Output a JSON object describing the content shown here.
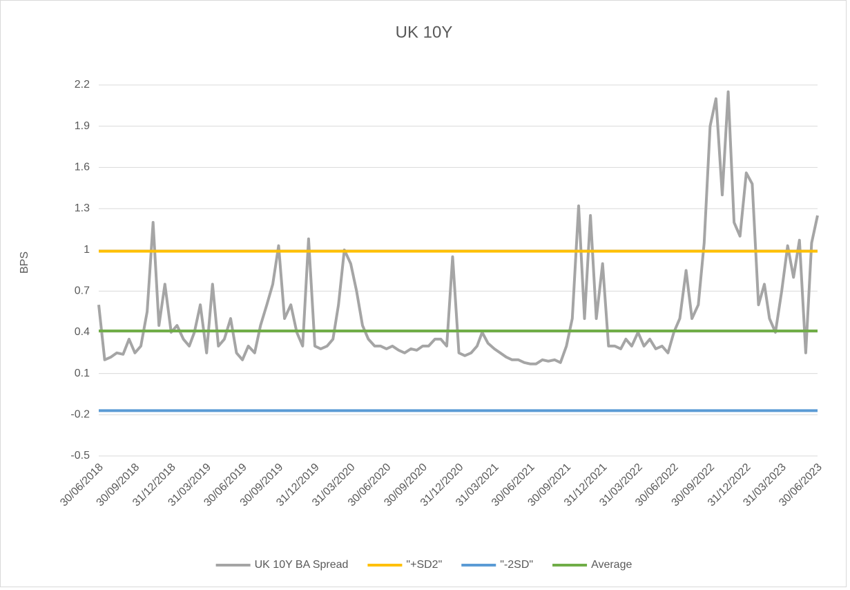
{
  "chart_data": {
    "type": "line",
    "title": "UK 10Y",
    "y_label": "BPS",
    "x": [
      "30/06/2018",
      "15/07/2018",
      "31/07/2018",
      "15/08/2018",
      "31/08/2018",
      "15/09/2018",
      "30/09/2018",
      "15/10/2018",
      "31/10/2018",
      "15/11/2018",
      "30/11/2018",
      "15/12/2018",
      "31/12/2018",
      "15/01/2019",
      "31/01/2019",
      "15/02/2019",
      "28/02/2019",
      "15/03/2019",
      "31/03/2019",
      "15/04/2019",
      "30/04/2019",
      "15/05/2019",
      "31/05/2019",
      "15/06/2019",
      "30/06/2019",
      "15/07/2019",
      "31/07/2019",
      "15/08/2019",
      "31/08/2019",
      "15/09/2019",
      "30/09/2019",
      "15/10/2019",
      "31/10/2019",
      "15/11/2019",
      "30/11/2019",
      "15/12/2019",
      "31/12/2019",
      "15/01/2020",
      "31/01/2020",
      "15/02/2020",
      "29/02/2020",
      "15/03/2020",
      "31/03/2020",
      "15/04/2020",
      "30/04/2020",
      "15/05/2020",
      "31/05/2020",
      "15/06/2020",
      "30/06/2020",
      "15/07/2020",
      "31/07/2020",
      "15/08/2020",
      "31/08/2020",
      "15/09/2020",
      "30/09/2020",
      "15/10/2020",
      "31/10/2020",
      "15/11/2020",
      "30/11/2020",
      "15/12/2020",
      "31/12/2020",
      "15/01/2021",
      "31/01/2021",
      "15/02/2021",
      "28/02/2021",
      "15/03/2021",
      "31/03/2021",
      "15/04/2021",
      "30/04/2021",
      "15/05/2021",
      "31/05/2021",
      "15/06/2021",
      "30/06/2021",
      "15/07/2021",
      "31/07/2021",
      "15/08/2021",
      "31/08/2021",
      "15/09/2021",
      "30/09/2021",
      "15/10/2021",
      "31/10/2021",
      "15/11/2021",
      "30/11/2021",
      "15/12/2021",
      "31/12/2021",
      "15/01/2022",
      "31/01/2022",
      "15/02/2022",
      "28/02/2022",
      "15/03/2022",
      "31/03/2022",
      "15/04/2022",
      "30/04/2022",
      "15/05/2022",
      "31/05/2022",
      "15/06/2022",
      "30/06/2022",
      "15/07/2022",
      "31/07/2022",
      "15/08/2022",
      "31/08/2022",
      "15/09/2022",
      "30/09/2022",
      "15/10/2022",
      "31/10/2022",
      "15/11/2022",
      "30/11/2022",
      "15/12/2022",
      "31/12/2022",
      "15/01/2023",
      "31/01/2023",
      "15/02/2023",
      "28/02/2023",
      "15/03/2023",
      "31/03/2023",
      "15/04/2023",
      "30/04/2023",
      "15/05/2023",
      "31/05/2023",
      "15/06/2023",
      "30/06/2023"
    ],
    "series": [
      {
        "name": "UK 10Y BA Spread",
        "color": "#a5a5a5",
        "values": [
          0.6,
          0.2,
          0.22,
          0.25,
          0.24,
          0.35,
          0.25,
          0.3,
          0.55,
          1.2,
          0.45,
          0.75,
          0.4,
          0.45,
          0.35,
          0.3,
          0.4,
          0.6,
          0.25,
          0.75,
          0.3,
          0.35,
          0.5,
          0.25,
          0.2,
          0.3,
          0.25,
          0.45,
          0.6,
          0.75,
          1.03,
          0.5,
          0.6,
          0.4,
          0.3,
          1.08,
          0.3,
          0.28,
          0.3,
          0.35,
          0.6,
          1.0,
          0.9,
          0.7,
          0.45,
          0.35,
          0.3,
          0.3,
          0.28,
          0.3,
          0.27,
          0.25,
          0.28,
          0.27,
          0.3,
          0.3,
          0.35,
          0.35,
          0.3,
          0.95,
          0.25,
          0.23,
          0.25,
          0.3,
          0.4,
          0.32,
          0.28,
          0.25,
          0.22,
          0.2,
          0.2,
          0.18,
          0.17,
          0.17,
          0.2,
          0.19,
          0.2,
          0.18,
          0.3,
          0.5,
          1.32,
          0.5,
          1.25,
          0.5,
          0.9,
          0.3,
          0.3,
          0.28,
          0.35,
          0.3,
          0.4,
          0.3,
          0.35,
          0.28,
          0.3,
          0.25,
          0.4,
          0.5,
          0.85,
          0.5,
          0.6,
          1.05,
          1.9,
          2.1,
          1.4,
          2.15,
          1.2,
          1.1,
          1.56,
          1.48,
          0.6,
          0.75,
          0.5,
          0.4,
          0.7,
          1.03,
          0.8,
          1.07,
          0.25,
          1.05,
          1.25
        ]
      }
    ],
    "reference_lines": [
      {
        "name": "\"+SD2\"",
        "color": "#ffc000",
        "value": 0.99
      },
      {
        "name": "\"-2SD\"",
        "color": "#5b9bd5",
        "value": -0.17
      },
      {
        "name": "Average",
        "color": "#70ad47",
        "value": 0.41
      }
    ],
    "xlim": [
      "30/06/2018",
      "30/06/2023"
    ],
    "xticks": [
      "30/06/2018",
      "30/09/2018",
      "31/12/2018",
      "31/03/2019",
      "30/06/2019",
      "30/09/2019",
      "31/12/2019",
      "31/03/2020",
      "30/06/2020",
      "30/09/2020",
      "31/12/2020",
      "31/03/2021",
      "30/06/2021",
      "30/09/2021",
      "31/12/2021",
      "31/03/2022",
      "30/06/2022",
      "30/09/2022",
      "31/12/2022",
      "31/03/2023",
      "30/06/2023"
    ],
    "ylim": [
      -0.5,
      2.2
    ],
    "yticks": [
      -0.5,
      -0.2,
      0.1,
      0.4,
      0.7,
      1,
      1.3,
      1.6,
      1.9,
      2.2
    ],
    "grid": true,
    "legend": "bottom"
  }
}
